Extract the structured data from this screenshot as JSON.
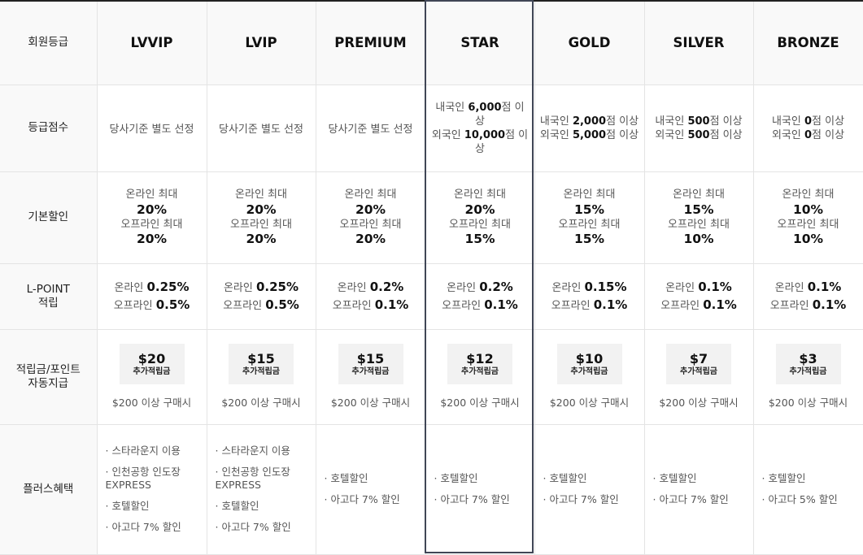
{
  "row_labels": {
    "grade": "회원등급",
    "score": "등급점수",
    "discount": "기본할인",
    "lpoint": "L-POINT 적립",
    "reward": "적립금/포인트 자동지급",
    "benefit": "플러스혜택"
  },
  "grades": [
    {
      "name": "LVVIP",
      "score_text": "당사기준 별도 선정",
      "discount": {
        "online_label": "온라인 최대",
        "online_value": "20%",
        "offline_label": "오프라인 최대",
        "offline_value": "20%"
      },
      "lpoint": {
        "online_label": "온라인",
        "online_value": "0.25%",
        "offline_label": "오프라인",
        "offline_value": "0.5%"
      },
      "reward": {
        "amount": "$20",
        "tag": "추가적립금",
        "condition": "$200 이상 구매시"
      },
      "benefits": [
        "· 스타라운지 이용",
        "· 인천공항 인도장 EXPRESS",
        "· 호텔할인",
        "· 아고다 7% 할인"
      ]
    },
    {
      "name": "LVIP",
      "score_text": "당사기준 별도 선정",
      "discount": {
        "online_label": "온라인 최대",
        "online_value": "20%",
        "offline_label": "오프라인 최대",
        "offline_value": "20%"
      },
      "lpoint": {
        "online_label": "온라인",
        "online_value": "0.25%",
        "offline_label": "오프라인",
        "offline_value": "0.5%"
      },
      "reward": {
        "amount": "$15",
        "tag": "추가적립금",
        "condition": "$200 이상 구매시"
      },
      "benefits": [
        "· 스타라운지 이용",
        "· 인천공항 인도장 EXPRESS",
        "· 호텔할인",
        "· 아고다 7% 할인"
      ]
    },
    {
      "name": "PREMIUM",
      "score_text": "당사기준 별도 선정",
      "discount": {
        "online_label": "온라인 최대",
        "online_value": "20%",
        "offline_label": "오프라인 최대",
        "offline_value": "20%"
      },
      "lpoint": {
        "online_label": "온라인",
        "online_value": "0.2%",
        "offline_label": "오프라인",
        "offline_value": "0.1%"
      },
      "reward": {
        "amount": "$15",
        "tag": "추가적립금",
        "condition": "$200 이상 구매시"
      },
      "benefits": [
        "· 호텔할인",
        "· 아고다 7% 할인"
      ]
    },
    {
      "name": "STAR",
      "score": {
        "dom_label": "내국인",
        "dom_value": "6,000",
        "dom_suffix": "점 이상",
        "for_label": "외국인",
        "for_value": "10,000",
        "for_suffix": "점 이상"
      },
      "discount": {
        "online_label": "온라인 최대",
        "online_value": "20%",
        "offline_label": "오프라인 최대",
        "offline_value": "15%"
      },
      "lpoint": {
        "online_label": "온라인",
        "online_value": "0.2%",
        "offline_label": "오프라인",
        "offline_value": "0.1%"
      },
      "reward": {
        "amount": "$12",
        "tag": "추가적립금",
        "condition": "$200 이상 구매시"
      },
      "benefits": [
        "· 호텔할인",
        "· 아고다 7% 할인"
      ]
    },
    {
      "name": "GOLD",
      "score": {
        "dom_label": "내국인",
        "dom_value": "2,000",
        "dom_suffix": "점 이상",
        "for_label": "외국인",
        "for_value": "5,000",
        "for_suffix": "점 이상"
      },
      "discount": {
        "online_label": "온라인 최대",
        "online_value": "15%",
        "offline_label": "오프라인 최대",
        "offline_value": "15%"
      },
      "lpoint": {
        "online_label": "온라인",
        "online_value": "0.15%",
        "offline_label": "오프라인",
        "offline_value": "0.1%"
      },
      "reward": {
        "amount": "$10",
        "tag": "추가적립금",
        "condition": "$200 이상 구매시"
      },
      "benefits": [
        "· 호텔할인",
        "· 아고다 7% 할인"
      ]
    },
    {
      "name": "SILVER",
      "score": {
        "dom_label": "내국인",
        "dom_value": "500",
        "dom_suffix": "점 이상",
        "for_label": "외국인",
        "for_value": "500",
        "for_suffix": "점 이상"
      },
      "discount": {
        "online_label": "온라인 최대",
        "online_value": "15%",
        "offline_label": "오프라인 최대",
        "offline_value": "10%"
      },
      "lpoint": {
        "online_label": "온라인",
        "online_value": "0.1%",
        "offline_label": "오프라인",
        "offline_value": "0.1%"
      },
      "reward": {
        "amount": "$7",
        "tag": "추가적립금",
        "condition": "$200 이상 구매시"
      },
      "benefits": [
        "· 호텔할인",
        "· 아고다 7% 할인"
      ]
    },
    {
      "name": "BRONZE",
      "score": {
        "dom_label": "내국인",
        "dom_value": "0",
        "dom_suffix": "점 이상",
        "for_label": "외국인",
        "for_value": "0",
        "for_suffix": "점 이상"
      },
      "discount": {
        "online_label": "온라인 최대",
        "online_value": "10%",
        "offline_label": "오프라인 최대",
        "offline_value": "10%"
      },
      "lpoint": {
        "online_label": "온라인",
        "online_value": "0.1%",
        "offline_label": "오프라인",
        "offline_value": "0.1%"
      },
      "reward": {
        "amount": "$3",
        "tag": "추가적립금",
        "condition": "$200 이상 구매시"
      },
      "benefits": [
        "· 호텔할인",
        "· 아고다 5% 할인"
      ]
    }
  ],
  "colors": {
    "border": "#e4e4e4",
    "header_bg": "#f9f9f9",
    "highlight_frame": "#404656",
    "reward_bg": "#f2f2f2"
  }
}
